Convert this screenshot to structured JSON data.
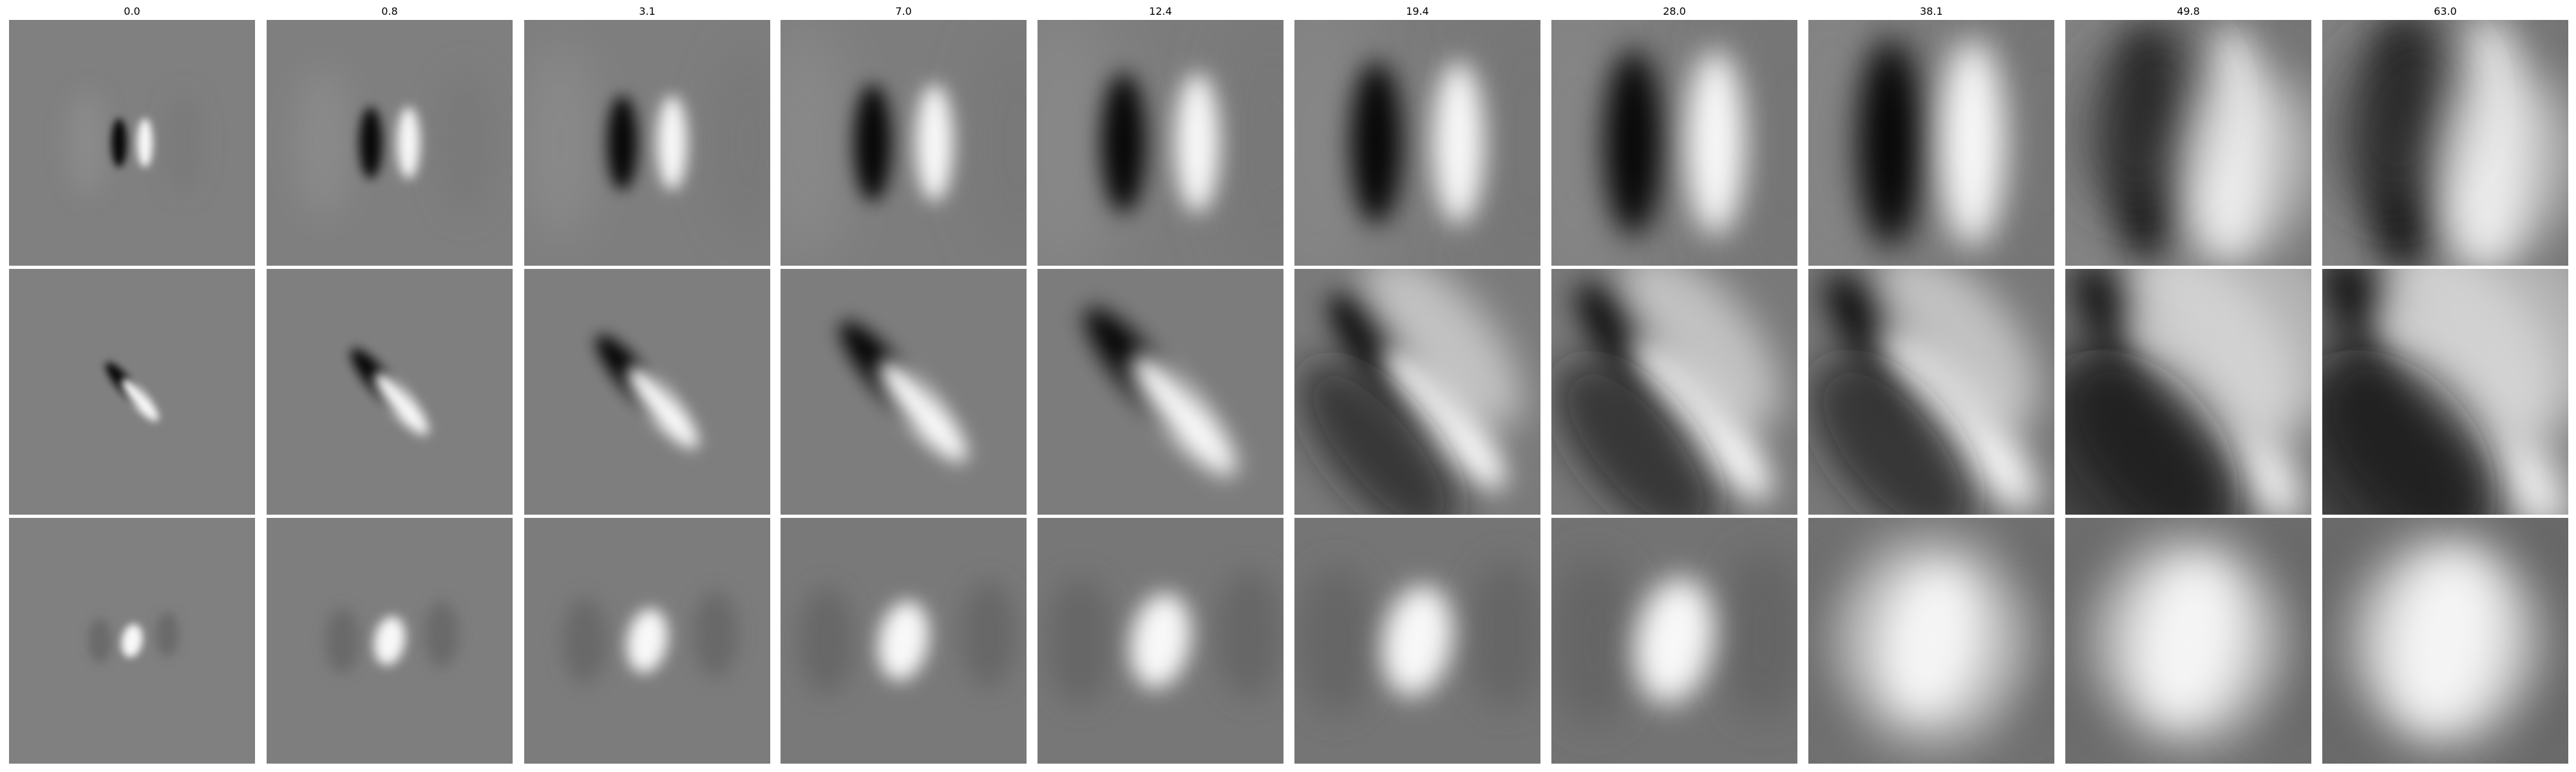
{
  "figure": {
    "columns": [
      {
        "label": "0.0"
      },
      {
        "label": "0.8"
      },
      {
        "label": "3.1"
      },
      {
        "label": "7.0"
      },
      {
        "label": "12.4"
      },
      {
        "label": "19.4"
      },
      {
        "label": "28.0"
      },
      {
        "label": "38.1"
      },
      {
        "label": "49.8"
      },
      {
        "label": "63.0"
      }
    ],
    "rows": [
      {
        "pattern": "vertical-odd-edge"
      },
      {
        "pattern": "diagonal-odd-edge"
      },
      {
        "pattern": "center-blob"
      }
    ],
    "colormap": "gray"
  }
}
